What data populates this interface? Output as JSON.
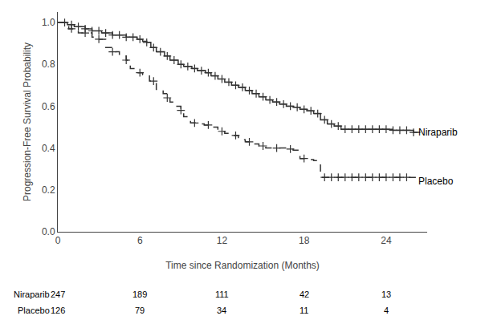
{
  "chart_data": {
    "type": "line",
    "xlabel": "Time since Randomization (Months)",
    "ylabel": "Progression-Free Survival Probability",
    "xlim": [
      0,
      27
    ],
    "ylim": [
      0.0,
      1.05
    ],
    "xticks": [
      0,
      6,
      12,
      18,
      24
    ],
    "yticks": [
      {
        "value": 0.0,
        "label": "0.0"
      },
      0.2,
      0.4,
      0.6,
      0.8,
      {
        "value": 1.0,
        "label": "1.0"
      }
    ],
    "grid": false,
    "series": [
      {
        "name": "Niraparib",
        "color": "#333333",
        "line_style": "solid",
        "marker": "cross",
        "x": [
          0.0,
          0.5,
          0.7,
          1.0,
          1.2,
          1.5,
          2.0,
          2.3,
          2.5,
          3.0,
          3.2,
          3.5,
          4.0,
          4.5,
          5.0,
          5.5,
          5.8,
          6.0,
          6.2,
          6.5,
          6.8,
          7.0,
          7.2,
          7.5,
          7.8,
          8.0,
          8.2,
          8.5,
          8.8,
          9.0,
          9.2,
          9.5,
          9.8,
          10.0,
          10.2,
          10.5,
          10.8,
          11.0,
          11.2,
          11.5,
          11.7,
          12.0,
          12.2,
          12.5,
          12.7,
          13.0,
          13.2,
          13.5,
          13.7,
          14.0,
          14.2,
          14.5,
          14.7,
          15.0,
          15.2,
          15.5,
          15.7,
          16.0,
          16.2,
          16.5,
          16.7,
          17.0,
          17.2,
          17.5,
          17.7,
          18.0,
          18.2,
          18.5,
          18.7,
          19.0,
          19.2,
          19.5,
          19.7,
          20.0,
          20.2,
          20.5,
          20.7,
          21.0,
          21.5,
          22.0,
          22.5,
          23.0,
          23.5,
          24.0,
          24.5,
          25.0,
          25.5,
          26.0,
          26.5
        ],
        "values": [
          1.0,
          1.0,
          0.99,
          0.99,
          0.98,
          0.98,
          0.97,
          0.97,
          0.96,
          0.96,
          0.95,
          0.95,
          0.94,
          0.94,
          0.93,
          0.93,
          0.92,
          0.92,
          0.91,
          0.905,
          0.88,
          0.88,
          0.86,
          0.86,
          0.84,
          0.84,
          0.82,
          0.82,
          0.8,
          0.8,
          0.79,
          0.79,
          0.78,
          0.78,
          0.77,
          0.77,
          0.76,
          0.76,
          0.745,
          0.745,
          0.73,
          0.73,
          0.715,
          0.715,
          0.7,
          0.7,
          0.69,
          0.69,
          0.675,
          0.675,
          0.66,
          0.66,
          0.645,
          0.645,
          0.63,
          0.63,
          0.62,
          0.62,
          0.61,
          0.61,
          0.6,
          0.6,
          0.595,
          0.595,
          0.585,
          0.585,
          0.578,
          0.578,
          0.565,
          0.565,
          0.535,
          0.535,
          0.515,
          0.515,
          0.505,
          0.505,
          0.49,
          0.49,
          0.49,
          0.49,
          0.49,
          0.49,
          0.49,
          0.49,
          0.485,
          0.485,
          0.485,
          0.475,
          0.475
        ],
        "censors": {
          "x": [
            0.5,
            1.0,
            1.5,
            2.0,
            2.5,
            3.0,
            3.5,
            4.0,
            4.5,
            5.0,
            5.5,
            6.0,
            6.5,
            7.0,
            7.5,
            8.0,
            8.5,
            9.0,
            9.5,
            10.0,
            10.5,
            11.0,
            11.5,
            12.0,
            12.5,
            13.0,
            13.5,
            14.0,
            14.5,
            15.0,
            15.5,
            16.0,
            16.5,
            17.0,
            17.5,
            18.0,
            18.5,
            19.0,
            19.5,
            20.0,
            20.5,
            21.0,
            21.5,
            22.0,
            22.5,
            23.0,
            23.5,
            24.0,
            24.5,
            25.0,
            25.5,
            26.0
          ],
          "values": [
            1.0,
            0.99,
            0.98,
            0.97,
            0.96,
            0.96,
            0.95,
            0.94,
            0.94,
            0.93,
            0.93,
            0.92,
            0.905,
            0.88,
            0.86,
            0.84,
            0.82,
            0.8,
            0.79,
            0.78,
            0.77,
            0.76,
            0.745,
            0.73,
            0.715,
            0.7,
            0.69,
            0.675,
            0.66,
            0.645,
            0.63,
            0.62,
            0.61,
            0.6,
            0.595,
            0.585,
            0.578,
            0.565,
            0.535,
            0.515,
            0.505,
            0.49,
            0.49,
            0.49,
            0.49,
            0.49,
            0.49,
            0.49,
            0.485,
            0.485,
            0.485,
            0.475
          ]
        }
      },
      {
        "name": "Placebo",
        "color": "#333333",
        "line_style": "dash",
        "marker": "cross",
        "x": [
          0.0,
          0.5,
          0.8,
          1.0,
          1.5,
          2.0,
          2.5,
          3.0,
          3.5,
          4.0,
          4.5,
          5.0,
          5.3,
          5.5,
          5.7,
          6.0,
          6.2,
          6.5,
          6.7,
          7.0,
          7.2,
          7.5,
          7.7,
          8.0,
          8.2,
          8.5,
          8.7,
          9.0,
          9.2,
          9.5,
          9.7,
          10.0,
          10.2,
          10.5,
          10.7,
          11.0,
          11.2,
          11.5,
          11.7,
          12.0,
          12.2,
          12.5,
          12.7,
          13.0,
          13.2,
          13.5,
          13.7,
          14.0,
          14.2,
          14.5,
          14.7,
          15.0,
          15.2,
          15.5,
          15.7,
          16.0,
          16.5,
          16.7,
          17.0,
          17.2,
          17.5,
          17.7,
          18.0,
          18.2,
          18.5,
          18.7,
          19.0,
          19.2,
          19.5,
          20.0,
          20.5,
          21.0,
          21.5,
          22.0,
          22.5,
          23.0,
          23.5,
          24.0,
          24.5,
          25.0,
          25.5,
          26.0,
          26.5
        ],
        "values": [
          1.0,
          1.0,
          0.97,
          0.97,
          0.95,
          0.95,
          0.93,
          0.92,
          0.88,
          0.86,
          0.84,
          0.82,
          0.78,
          0.78,
          0.76,
          0.76,
          0.75,
          0.75,
          0.72,
          0.72,
          0.68,
          0.68,
          0.66,
          0.64,
          0.62,
          0.62,
          0.6,
          0.58,
          0.55,
          0.55,
          0.52,
          0.52,
          0.515,
          0.515,
          0.51,
          0.51,
          0.5,
          0.5,
          0.48,
          0.48,
          0.47,
          0.47,
          0.46,
          0.46,
          0.44,
          0.44,
          0.43,
          0.43,
          0.42,
          0.42,
          0.41,
          0.41,
          0.4,
          0.4,
          0.4,
          0.4,
          0.4,
          0.395,
          0.395,
          0.39,
          0.39,
          0.35,
          0.35,
          0.345,
          0.345,
          0.34,
          0.34,
          0.26,
          0.26,
          0.26,
          0.26,
          0.26,
          0.26,
          0.26,
          0.26,
          0.26,
          0.26,
          0.26,
          0.26,
          0.26,
          0.26,
          0.26,
          0.26
        ],
        "censors": {
          "x": [
            1.0,
            2.0,
            3.0,
            4.0,
            5.0,
            6.0,
            7.0,
            8.0,
            9.0,
            10.0,
            11.0,
            12.0,
            13.0,
            14.0,
            15.0,
            16.0,
            17.0,
            18.0,
            19.5,
            20.0,
            20.5,
            21.0,
            21.5,
            22.0,
            22.5,
            23.0,
            23.5,
            24.0,
            24.5,
            25.0,
            25.5
          ],
          "values": [
            0.97,
            0.95,
            0.92,
            0.86,
            0.82,
            0.76,
            0.72,
            0.64,
            0.58,
            0.52,
            0.51,
            0.48,
            0.46,
            0.43,
            0.41,
            0.4,
            0.395,
            0.35,
            0.26,
            0.26,
            0.26,
            0.26,
            0.26,
            0.26,
            0.26,
            0.26,
            0.26,
            0.26,
            0.26,
            0.26,
            0.26
          ]
        }
      }
    ],
    "annotations": [
      {
        "text": "Niraparib",
        "x": 26.0,
        "y": 0.475
      },
      {
        "text": "Placebo",
        "x": 26.0,
        "y": 0.26
      }
    ],
    "at_risk": {
      "times": [
        0,
        6,
        12,
        18,
        24
      ],
      "rows": [
        {
          "name": "Niraparib",
          "values": [
            247,
            189,
            111,
            42,
            13
          ]
        },
        {
          "name": "Placebo",
          "values": [
            126,
            79,
            34,
            11,
            4
          ]
        }
      ]
    }
  }
}
